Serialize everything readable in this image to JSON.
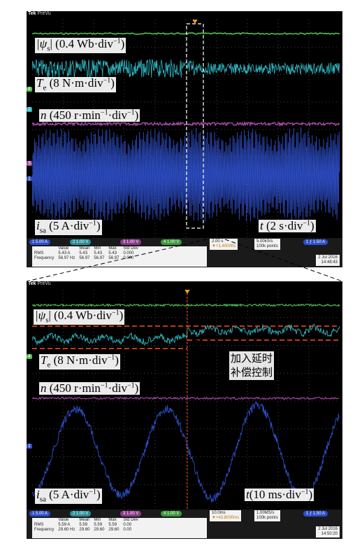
{
  "colors": {
    "flux": "#4fc24f",
    "torque": "#2fb8c4",
    "speed": "#a64aa6",
    "current": "#2e4fc9",
    "cursor_red": "#ff4f1a",
    "trigger_orange": "#f5a300"
  },
  "top": {
    "brand": "Tek",
    "brand_mode": "PreVu",
    "labels": {
      "flux_sym": "|ψ",
      "flux_sub": "s",
      "flux_unit": "| (0.4 Wb·div",
      "flux_exp": "−1",
      "flux_close": ")",
      "torque_sym": "T",
      "torque_sub": "e",
      "torque_unit": " (8 N·m·div",
      "torque_exp": "−1",
      "torque_close": ")",
      "speed_sym": "n",
      "speed_unit": " (450 r·min",
      "speed_exp1": "−1",
      "speed_mid": "·div",
      "speed_exp2": "−1",
      "speed_close": ")",
      "current_sym": "i",
      "current_sub": "sa",
      "current_unit": " (5 A·div",
      "current_exp": "−1",
      "current_close": ")",
      "time_sym": "t",
      "time_unit": " (2 s·div",
      "time_exp": "−1",
      "time_close": ")"
    },
    "channels": {
      "ch1": "5.00 A",
      "ch2": "1.00 V",
      "ch3": "1.00 V",
      "ch4": "1.00 V"
    },
    "timebase": "2.00 s",
    "timebase_offset": "▼+1.40000s",
    "sample_rate": "5.00kS/s",
    "points": "100k points",
    "trigger": "1.50 A",
    "measurements": {
      "headers": [
        "Value",
        "Mean",
        "Min",
        "Max",
        "Std Dev"
      ],
      "rows": [
        {
          "name": "RMS",
          "values": [
            "5.43 A",
            "5.43",
            "5.43",
            "5.43",
            "0.000"
          ]
        },
        {
          "name": "Frequency",
          "values": [
            "56.97 Hz",
            "56.97",
            "56.97",
            "56.97",
            "0.000"
          ]
        }
      ]
    },
    "date": "2 Jul 2016",
    "time": "14:48:43"
  },
  "bottom": {
    "brand": "Tek",
    "brand_mode": "PreVu",
    "labels": {
      "flux_sym": "|ψ",
      "flux_sub": "s",
      "flux_unit": "| (0.4 Wb·div",
      "flux_exp": "−1",
      "flux_close": ")",
      "torque_sym": "T",
      "torque_sub": "e",
      "torque_unit": " (8 N·m·div",
      "torque_exp": "−1",
      "torque_close": ")",
      "speed_sym": "n",
      "speed_unit": " (450 r·min",
      "speed_exp1": "−1",
      "speed_mid": "·div",
      "speed_exp2": "−1",
      "speed_close": ")",
      "current_sym": "i",
      "current_sub": "sa",
      "current_unit": " (5 A·div",
      "current_exp": "−1",
      "current_close": ")",
      "time_sym": "t",
      "time_unit": "(10 ms·div",
      "time_exp": "−1",
      "time_close": ")"
    },
    "annotation_line1": "加入延时",
    "annotation_line2": "补偿控制",
    "channels": {
      "ch1": "5.00 A",
      "ch2": "1.00 V",
      "ch3": "1.00 V",
      "ch4": "1.00 V"
    },
    "timebase": "10.0ms",
    "timebase_offset": "▼+43.8000ms",
    "sample_rate": "1.00MS/s",
    "points": "100k points",
    "trigger": "1.50 A",
    "measurements": {
      "headers": [
        "Value",
        "Mean",
        "Min",
        "Max",
        "Std Dev"
      ],
      "rows": [
        {
          "name": "RMS",
          "values": [
            "5.59 A",
            "5.59",
            "5.59",
            "5.59",
            "0.00"
          ]
        },
        {
          "name": "Frequency",
          "values": [
            "29.60 Hz",
            "29.60",
            "29.60",
            "29.60",
            "0.00"
          ]
        }
      ]
    },
    "date": "2 Jul 2016",
    "time": "14:50:20"
  }
}
